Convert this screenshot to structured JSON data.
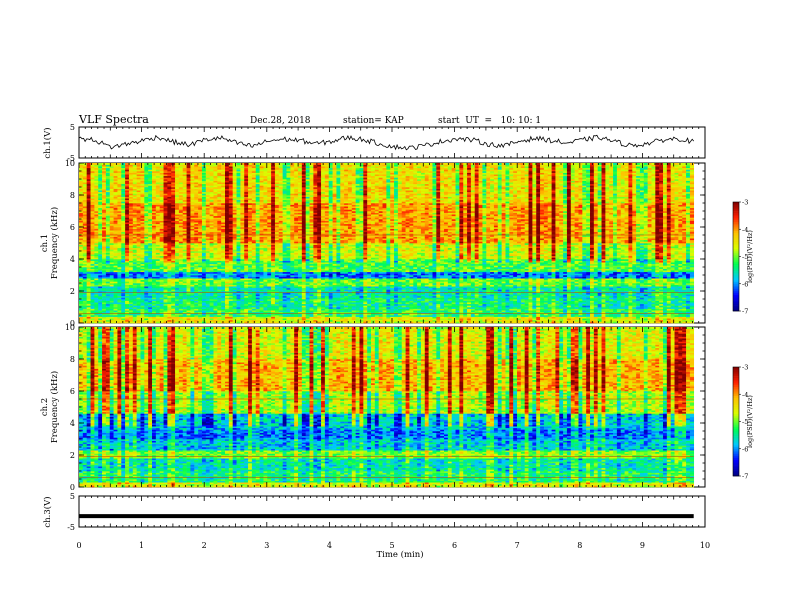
{
  "header": {
    "title": "VLF Spectra",
    "date": "Dec.28, 2018",
    "station": "station= KAP",
    "start": "start  UT  =   10: 10: 1"
  },
  "chart_data": [
    {
      "type": "line",
      "panel": "ch1-waveform",
      "ylabel": "ch.1(V)",
      "ylim": [
        -5,
        5
      ],
      "yticks": [
        "5",
        "-5"
      ],
      "xlim": [
        0,
        10
      ],
      "x_data_end": 9.82,
      "series": [
        {
          "values": [
            1.2,
            0.8,
            -1.5,
            -0.5,
            0.6,
            1.8,
            0.2,
            -0.8,
            0.9,
            1.5,
            -0.2,
            -1.2,
            0.5,
            1.1,
            0.7,
            -0.4,
            0.3,
            1.6,
            1.0,
            -0.3,
            -1.4,
            -1.8,
            -0.9,
            0.4,
            1.2,
            0.8,
            -0.6,
            -1.1,
            0.5,
            1.4,
            0.6,
            -0.2,
            0.9,
            1.7,
            0.3,
            -1.0,
            -0.4,
            0.8,
            1.3,
            0.2
          ]
        }
      ]
    },
    {
      "type": "heatmap",
      "panel": "ch1-spectrogram",
      "ylabel": "ch.1\nFrequency (kHz)",
      "ylim": [
        0,
        10
      ],
      "yticks": [
        "0",
        "2",
        "4",
        "6",
        "8",
        "10"
      ],
      "xlim": [
        0,
        10
      ],
      "x_data_end": 9.82,
      "colorbar": {
        "label": "log(PSD)(V²/Hz)",
        "range": [
          -7,
          -3
        ],
        "ticks": [
          "-3",
          "-4",
          "-5",
          "-6",
          "-7"
        ]
      },
      "bands": [
        {
          "from": 0,
          "to": 0.4,
          "level": -4.6
        },
        {
          "from": 0.4,
          "to": 0.9,
          "level": -5.3
        },
        {
          "from": 0.9,
          "to": 1.6,
          "level": -5.5
        },
        {
          "from": 1.6,
          "to": 2.3,
          "level": -5.6
        },
        {
          "from": 2.3,
          "to": 2.8,
          "level": -5.1
        },
        {
          "from": 2.8,
          "to": 3.2,
          "level": -6.1
        },
        {
          "from": 3.2,
          "to": 4.0,
          "level": -5.2
        },
        {
          "from": 4.0,
          "to": 5.0,
          "level": -4.8
        },
        {
          "from": 5.0,
          "to": 7.5,
          "level": -4.2
        },
        {
          "from": 7.5,
          "to": 10.0,
          "level": -4.6
        }
      ]
    },
    {
      "type": "heatmap",
      "panel": "ch2-spectrogram",
      "ylabel": "ch.2\nFrequency (kHz)",
      "ylim": [
        0,
        10
      ],
      "yticks": [
        "0",
        "2",
        "4",
        "6",
        "8",
        "10"
      ],
      "xlim": [
        0,
        10
      ],
      "x_data_end": 9.82,
      "colorbar": {
        "label": "log(PSD)(V²/Hz)",
        "range": [
          -7,
          -3
        ],
        "ticks": [
          "-3",
          "-4",
          "-5",
          "-6",
          "-7"
        ]
      },
      "bands": [
        {
          "from": 0,
          "to": 0.3,
          "level": -4.6
        },
        {
          "from": 0.3,
          "to": 1.0,
          "level": -5.4
        },
        {
          "from": 1.0,
          "to": 1.8,
          "level": -5.6
        },
        {
          "from": 1.8,
          "to": 2.3,
          "level": -5.0
        },
        {
          "from": 2.3,
          "to": 3.0,
          "level": -5.8
        },
        {
          "from": 3.0,
          "to": 3.6,
          "level": -6.1
        },
        {
          "from": 3.6,
          "to": 4.6,
          "level": -5.9
        },
        {
          "from": 4.6,
          "to": 6.0,
          "level": -4.9
        },
        {
          "from": 6.0,
          "to": 8.0,
          "level": -4.3
        },
        {
          "from": 8.0,
          "to": 10.0,
          "level": -4.7
        }
      ]
    },
    {
      "type": "line",
      "panel": "ch3-waveform",
      "ylabel": "ch.3(V)",
      "ylim": [
        -5,
        5
      ],
      "yticks": [
        "5",
        "-5"
      ],
      "xlim": [
        0,
        10
      ],
      "xlabel": "Time (min)",
      "xticks": [
        "0",
        "1",
        "2",
        "3",
        "4",
        "5",
        "6",
        "7",
        "8",
        "9",
        "10"
      ],
      "x_data_end": 9.82,
      "series": [
        {
          "values": [
            -1.5,
            -1.5
          ]
        }
      ]
    }
  ],
  "colors": {
    "colormap": [
      "#000080",
      "#0000ff",
      "#00c8ff",
      "#00ff50",
      "#d8ff00",
      "#ffc000",
      "#ff2000",
      "#800000"
    ],
    "axis": "#000000",
    "trace": "#000000"
  }
}
